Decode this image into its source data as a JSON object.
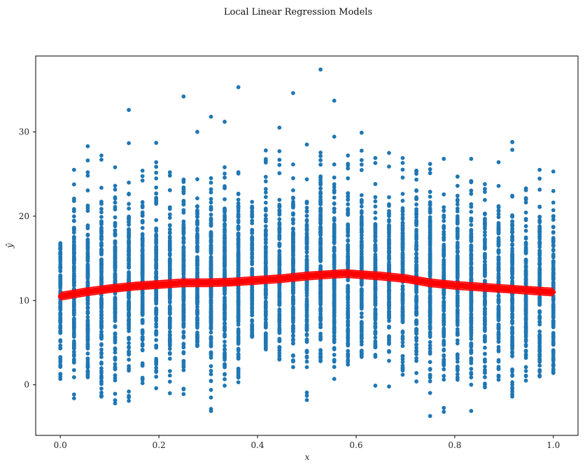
{
  "chart_data": {
    "type": "scatter",
    "title": "Local Linear Regression Models",
    "xlabel": "x",
    "ylabel": "ŷ",
    "xlim": [
      -0.05,
      1.05
    ],
    "ylim": [
      -6,
      39
    ],
    "xticks": [
      0.0,
      0.2,
      0.4,
      0.6,
      0.8,
      1.0
    ],
    "xtick_labels": [
      "0.0",
      "0.2",
      "0.4",
      "0.6",
      "0.8",
      "1.0"
    ],
    "yticks": [
      0,
      10,
      20,
      30
    ],
    "ytick_labels": [
      "0",
      "10",
      "20",
      "30"
    ],
    "grid": false,
    "legend": "none",
    "scatter_color": "#1f77b4",
    "line_color": "#ff0000",
    "x_positions": [
      0.0,
      0.0278,
      0.0556,
      0.0833,
      0.1111,
      0.1389,
      0.1667,
      0.1944,
      0.2222,
      0.25,
      0.2778,
      0.3056,
      0.3333,
      0.3611,
      0.3889,
      0.4167,
      0.4444,
      0.4722,
      0.5,
      0.5278,
      0.5556,
      0.5833,
      0.6111,
      0.6389,
      0.6667,
      0.6944,
      0.7222,
      0.75,
      0.7778,
      0.8056,
      0.8333,
      0.8611,
      0.8889,
      0.9167,
      0.9444,
      0.9722,
      1.0
    ],
    "column_ranges": [
      {
        "x": 0.0,
        "min": 0.7,
        "max": 16.8
      },
      {
        "x": 0.0278,
        "min": -1.6,
        "max": 25.5
      },
      {
        "x": 0.0556,
        "min": 0.9,
        "max": 28.3
      },
      {
        "x": 0.0833,
        "min": -1.4,
        "max": 27.2
      },
      {
        "x": 0.1111,
        "min": -2.2,
        "max": 25.8
      },
      {
        "x": 0.1389,
        "min": -1.9,
        "max": 32.6
      },
      {
        "x": 0.1667,
        "min": 0.2,
        "max": 25.4
      },
      {
        "x": 0.1944,
        "min": -0.4,
        "max": 28.7
      },
      {
        "x": 0.2222,
        "min": -1.0,
        "max": 25.2
      },
      {
        "x": 0.25,
        "min": -1.1,
        "max": 34.2
      },
      {
        "x": 0.2778,
        "min": 4.6,
        "max": 30.0
      },
      {
        "x": 0.3056,
        "min": -3.1,
        "max": 31.8
      },
      {
        "x": 0.3333,
        "min": -0.1,
        "max": 31.2
      },
      {
        "x": 0.3611,
        "min": 0.3,
        "max": 35.3
      },
      {
        "x": 0.3889,
        "min": 5.7,
        "max": 21.7
      },
      {
        "x": 0.4167,
        "min": 4.2,
        "max": 27.8
      },
      {
        "x": 0.4444,
        "min": 3.0,
        "max": 30.5
      },
      {
        "x": 0.4722,
        "min": 2.1,
        "max": 34.6
      },
      {
        "x": 0.5,
        "min": -1.8,
        "max": 28.5
      },
      {
        "x": 0.5278,
        "min": 2.8,
        "max": 37.4
      },
      {
        "x": 0.5556,
        "min": 0.7,
        "max": 33.7
      },
      {
        "x": 0.5833,
        "min": 2.4,
        "max": 27.2
      },
      {
        "x": 0.6111,
        "min": 3.3,
        "max": 29.9
      },
      {
        "x": 0.6389,
        "min": -0.1,
        "max": 26.9
      },
      {
        "x": 0.6667,
        "min": -0.2,
        "max": 27.5
      },
      {
        "x": 0.6944,
        "min": 1.2,
        "max": 26.9
      },
      {
        "x": 0.7222,
        "min": 0.4,
        "max": 25.4
      },
      {
        "x": 0.75,
        "min": -3.7,
        "max": 26.2
      },
      {
        "x": 0.7778,
        "min": -3.2,
        "max": 26.8
      },
      {
        "x": 0.8056,
        "min": 0.6,
        "max": 24.7
      },
      {
        "x": 0.8333,
        "min": -3.1,
        "max": 26.8
      },
      {
        "x": 0.8611,
        "min": -0.3,
        "max": 23.8
      },
      {
        "x": 0.8889,
        "min": 0.6,
        "max": 26.4
      },
      {
        "x": 0.9167,
        "min": -1.4,
        "max": 28.8
      },
      {
        "x": 0.9444,
        "min": 0.5,
        "max": 23.3
      },
      {
        "x": 0.9722,
        "min": 1.0,
        "max": 25.5
      },
      {
        "x": 1.0,
        "min": 1.4,
        "max": 25.3
      }
    ],
    "fit_curve": {
      "x": [
        0.0,
        0.05,
        0.1,
        0.15,
        0.2,
        0.25,
        0.3,
        0.35,
        0.4,
        0.45,
        0.5,
        0.55,
        0.58,
        0.6,
        0.65,
        0.7,
        0.75,
        0.8,
        0.85,
        0.9,
        0.95,
        1.0
      ],
      "y": [
        10.5,
        11.0,
        11.4,
        11.7,
        11.9,
        12.1,
        12.1,
        12.2,
        12.4,
        12.6,
        12.9,
        13.1,
        13.2,
        13.1,
        12.9,
        12.6,
        12.1,
        11.8,
        11.6,
        11.4,
        11.2,
        11.0
      ]
    }
  }
}
